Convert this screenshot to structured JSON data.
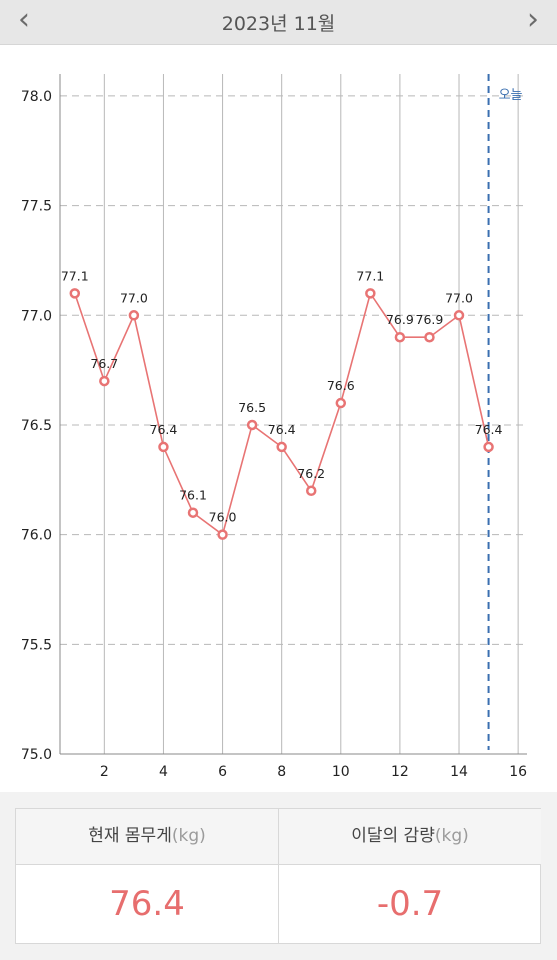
{
  "header": {
    "title": "2023년 11월",
    "prev_icon": "chevron-left-icon",
    "next_icon": "chevron-right-icon",
    "prev_glyph": "‹",
    "next_glyph": "›"
  },
  "chart_data": {
    "type": "line",
    "x": [
      1,
      2,
      3,
      4,
      5,
      6,
      7,
      8,
      9,
      10,
      11,
      12,
      13,
      14,
      15
    ],
    "series": [
      {
        "values": [
          77.1,
          76.7,
          77.0,
          76.4,
          76.1,
          76.0,
          76.5,
          76.4,
          76.2,
          76.6,
          77.1,
          76.9,
          76.9,
          77.0,
          76.4
        ]
      }
    ],
    "data_labels": [
      "77.1",
      "76.7",
      "77.0",
      "76.4",
      "76.1",
      "76.0",
      "76.5",
      "76.4",
      "76.2",
      "76.6",
      "77.1",
      "76.9",
      "76.9",
      "77.0",
      "76.4"
    ],
    "x_ticks": [
      2,
      4,
      6,
      8,
      10,
      12,
      14,
      16
    ],
    "y_ticks": [
      "78.0",
      "77.5",
      "77.0",
      "76.5",
      "76.0",
      "75.5",
      "75.0"
    ],
    "xlim": [
      0.5,
      16.3
    ],
    "ylim": [
      75.0,
      78.1
    ],
    "today_x": 15,
    "today_label": "오늘",
    "grid": true,
    "colors": {
      "line": "#e87474",
      "today": "#3a6fb0",
      "grid": "#b8b8b8"
    }
  },
  "summary": {
    "current_label": "현재 몸무게",
    "current_unit": "(kg)",
    "current_value": "76.4",
    "change_label": "이달의 감량",
    "change_unit": "(kg)",
    "change_value": "-0.7"
  }
}
